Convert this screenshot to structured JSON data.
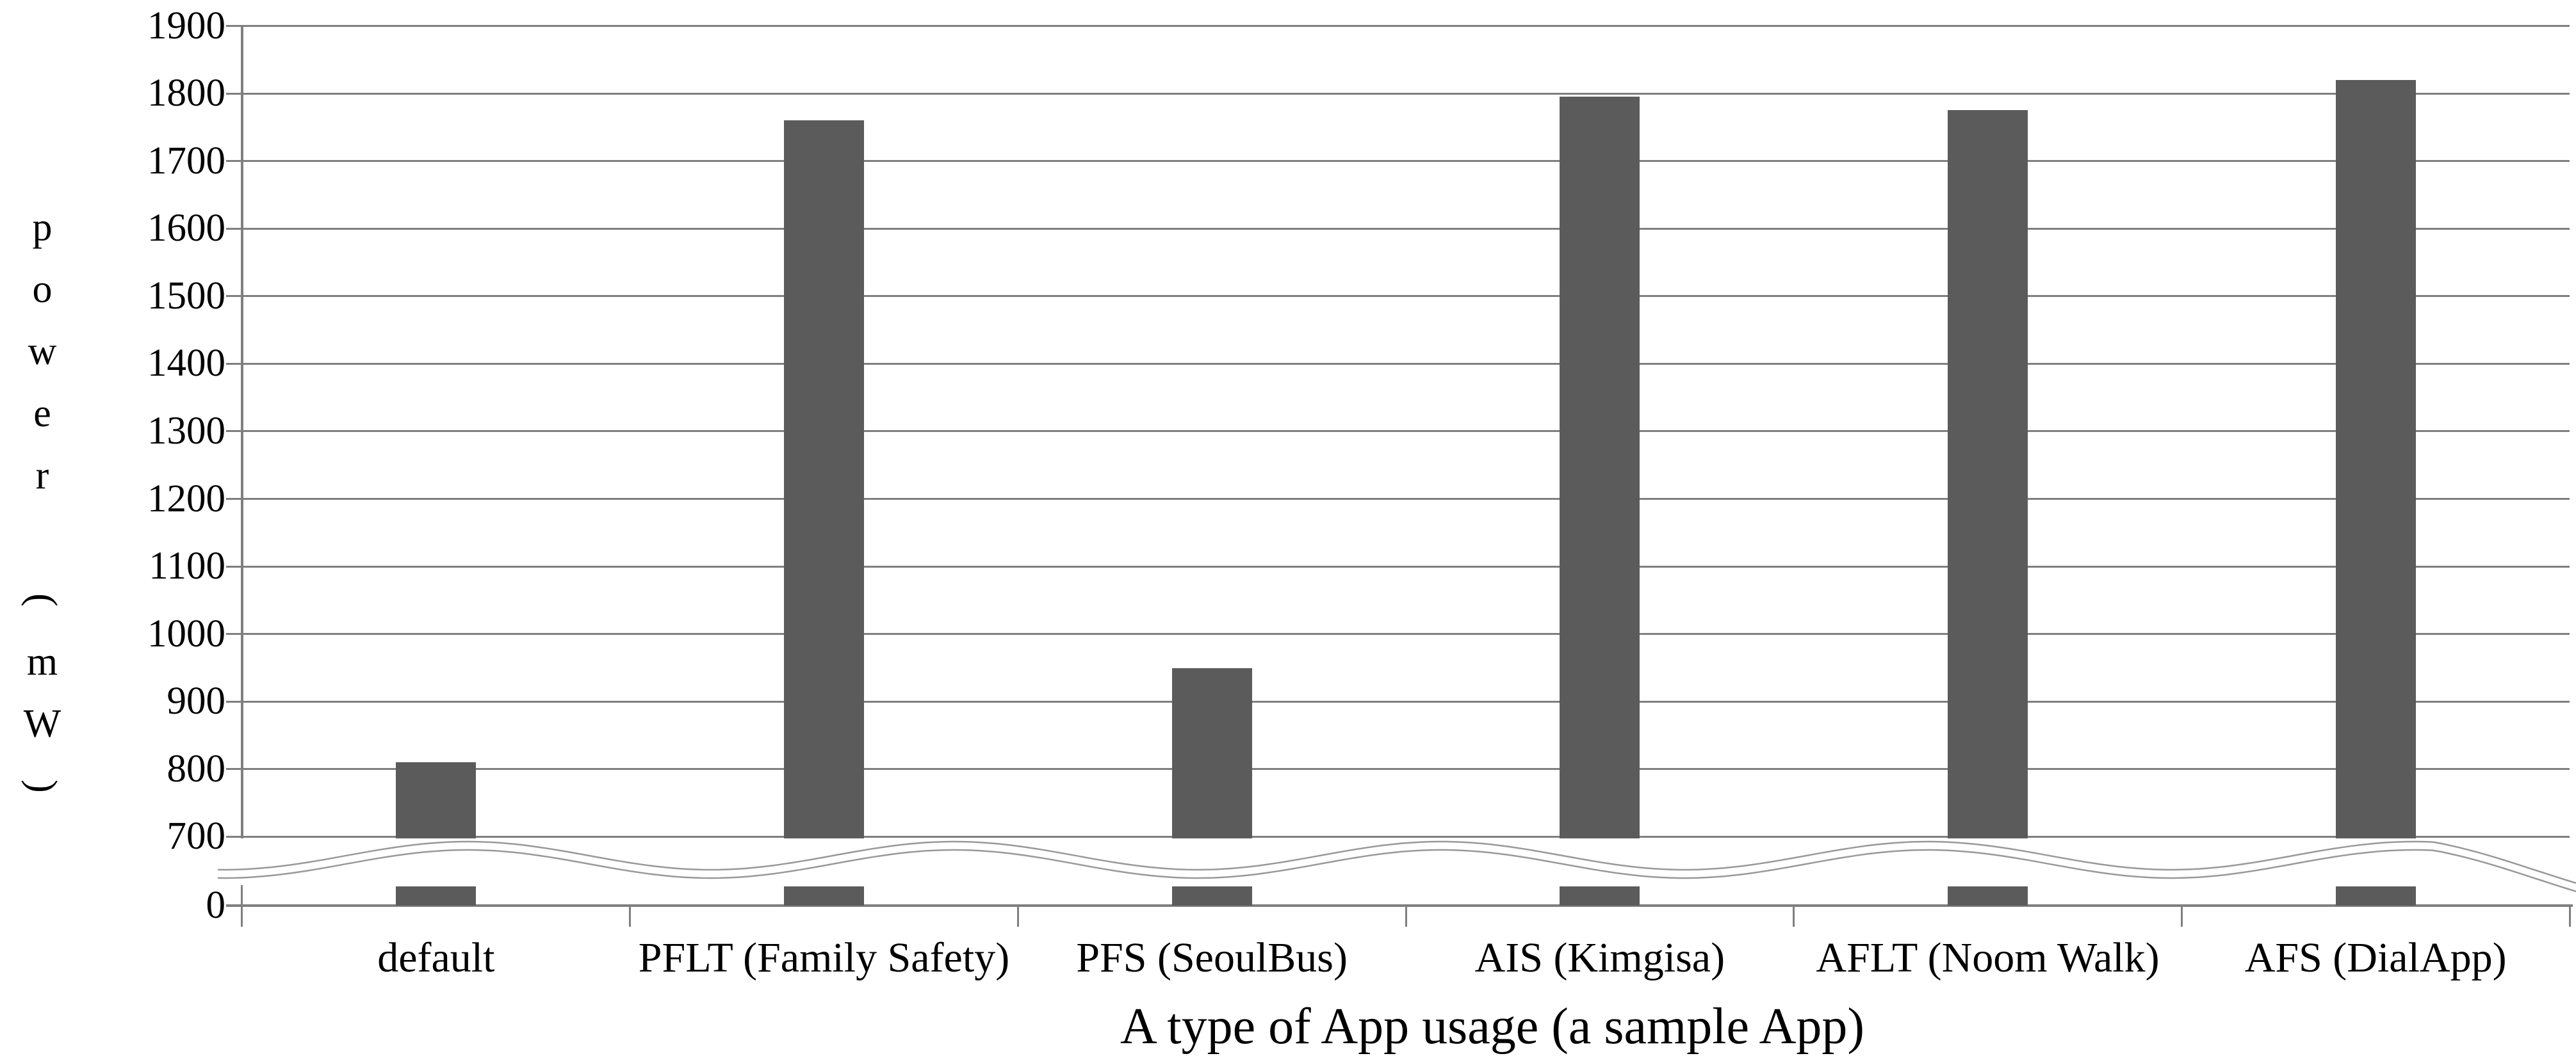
{
  "chart_data": {
    "type": "bar",
    "title": "",
    "xlabel": "A type of App usage (a sample App)",
    "ylabel": "power (mW)",
    "ylabel_vertical_chars": [
      "p",
      "o",
      "w",
      "e",
      "r",
      " ",
      "(",
      "m",
      "W",
      ")"
    ],
    "categories": [
      "default",
      "PFLT (Family Safety)",
      "PFS (SeoulBus)",
      "AIS (Kimgisa)",
      "AFLT (Noom Walk)",
      "AFS (DialApp)"
    ],
    "values": [
      810,
      1760,
      950,
      1795,
      1775,
      1820
    ],
    "series_name": "power",
    "unit": "mW",
    "y_axis": {
      "ticks": [
        "1900",
        "1800",
        "1700",
        "1600",
        "1500",
        "1400",
        "1300",
        "1200",
        "1100",
        "1000",
        "900",
        "800",
        "700"
      ],
      "zero_label": "0",
      "axis_break": true,
      "break_between": [
        0,
        700
      ],
      "visible_range": [
        700,
        1900
      ],
      "tick_step": 100
    },
    "legend": null,
    "grid": true,
    "colors": {
      "bar": "#5b5b5b",
      "grid": "#7f7f7f",
      "axis": "#7f7f7f",
      "wave": "#999999",
      "text": "#000000",
      "background": "#ffffff"
    }
  }
}
